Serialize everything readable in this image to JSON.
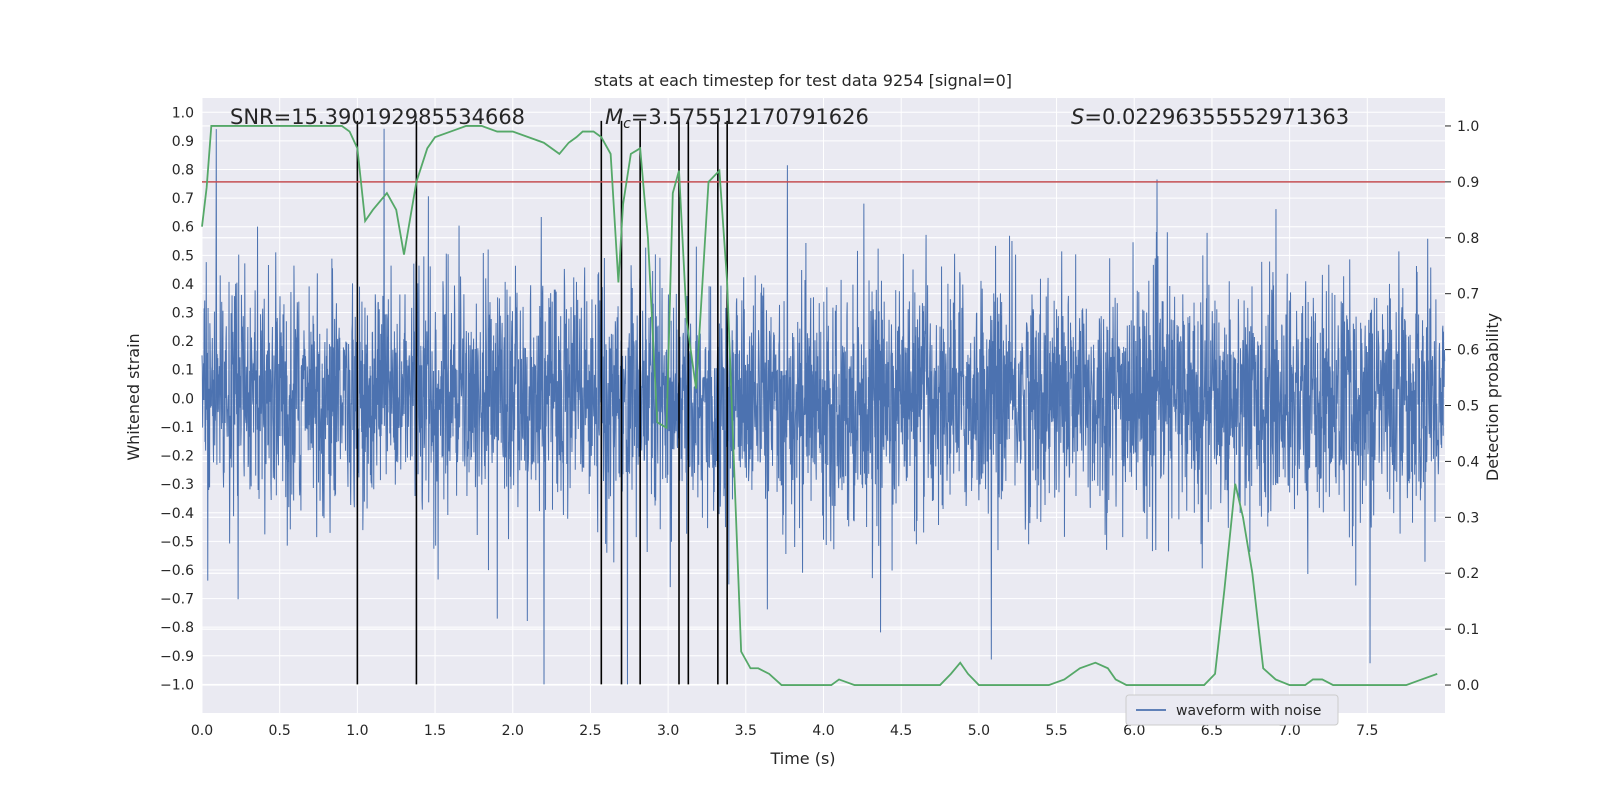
{
  "chart_data": {
    "type": "line",
    "title": "stats at each timestep for test data 9254 [signal=0]",
    "xlabel": "Time (s)",
    "ylabel": "Whitened strain",
    "y2label": "Detection probability",
    "xlim": [
      0.0,
      8.0
    ],
    "ylim": [
      -1.1,
      1.05
    ],
    "y2lim": [
      -0.05,
      1.05
    ],
    "x_ticks": [
      0.0,
      0.5,
      1.0,
      1.5,
      2.0,
      2.5,
      3.0,
      3.5,
      4.0,
      4.5,
      5.0,
      5.5,
      6.0,
      6.5,
      7.0,
      7.5
    ],
    "x_tick_labels": [
      "0.0",
      "0.5",
      "1.0",
      "1.5",
      "2.0",
      "2.5",
      "3.0",
      "3.5",
      "4.0",
      "4.5",
      "5.0",
      "5.5",
      "6.0",
      "6.5",
      "7.0",
      "7.5"
    ],
    "y_ticks": [
      -1.0,
      -0.9,
      -0.8,
      -0.7,
      -0.6,
      -0.5,
      -0.4,
      -0.3,
      -0.2,
      -0.1,
      0.0,
      0.1,
      0.2,
      0.3,
      0.4,
      0.5,
      0.6,
      0.7,
      0.8,
      0.9,
      1.0
    ],
    "y_tick_labels": [
      "−1.0",
      "−0.9",
      "−0.8",
      "−0.7",
      "−0.6",
      "−0.5",
      "−0.4",
      "−0.3",
      "−0.2",
      "−0.1",
      "0.0",
      "0.1",
      "0.2",
      "0.3",
      "0.4",
      "0.5",
      "0.6",
      "0.7",
      "0.8",
      "0.9",
      "1.0"
    ],
    "y2_ticks": [
      0.0,
      0.1,
      0.2,
      0.3,
      0.4,
      0.5,
      0.6,
      0.7,
      0.8,
      0.9,
      1.0
    ],
    "y2_tick_labels": [
      "0.0",
      "0.1",
      "0.2",
      "0.3",
      "0.4",
      "0.5",
      "0.6",
      "0.7",
      "0.8",
      "0.9",
      "1.0"
    ],
    "grid": true,
    "legend": {
      "entries": [
        "waveform with noise"
      ],
      "placement": "lower-right"
    },
    "annotations": {
      "snr": "SNR=15.390192985534668",
      "mc_symbol": "M",
      "mc_sub": "c",
      "mc_value": "=3.575512170791626",
      "s_symbol": "S",
      "s_value": "=0.022963555529713​63"
    },
    "threshold": {
      "value": 0.9,
      "axis": "right",
      "color": "#c44e52"
    },
    "event_lines_x": [
      1.0,
      1.38,
      2.57,
      2.7,
      2.82,
      3.07,
      3.13,
      3.32,
      3.38
    ],
    "waveform": {
      "name": "waveform with noise",
      "color": "#4c72b0",
      "n_samples": 4096,
      "typical_amplitude": 0.35,
      "peak_amplitude": 1.0
    },
    "probability": {
      "color": "#55a868",
      "x": [
        0.0,
        0.03,
        0.06,
        0.15,
        0.3,
        0.5,
        0.7,
        0.9,
        0.95,
        1.0,
        1.05,
        1.1,
        1.19,
        1.25,
        1.3,
        1.38,
        1.45,
        1.5,
        1.6,
        1.7,
        1.8,
        1.9,
        2.0,
        2.1,
        2.2,
        2.3,
        2.36,
        2.41,
        2.45,
        2.52,
        2.57,
        2.63,
        2.68,
        2.71,
        2.76,
        2.82,
        2.87,
        2.93,
        2.99,
        3.03,
        3.07,
        3.12,
        3.18,
        3.26,
        3.33,
        3.38,
        3.43,
        3.47,
        3.53,
        3.58,
        3.65,
        3.73,
        3.83,
        3.95,
        4.05,
        4.1,
        4.2,
        4.25,
        4.4,
        4.55,
        4.65,
        4.75,
        4.82,
        4.88,
        4.93,
        5.0,
        5.08,
        5.15,
        5.25,
        5.35,
        5.45,
        5.55,
        5.65,
        5.75,
        5.83,
        5.88,
        5.95,
        6.05,
        6.2,
        6.35,
        6.45,
        6.52,
        6.58,
        6.65,
        6.7,
        6.76,
        6.83,
        6.91,
        7.0,
        7.1,
        7.15,
        7.21,
        7.28,
        7.35,
        7.45,
        7.55,
        7.65,
        7.75,
        7.85,
        7.95
      ],
      "y": [
        0.82,
        0.89,
        1.0,
        1.0,
        1.0,
        1.0,
        1.0,
        1.0,
        0.99,
        0.96,
        0.83,
        0.85,
        0.88,
        0.85,
        0.77,
        0.9,
        0.96,
        0.98,
        0.99,
        1.0,
        1.0,
        0.99,
        0.99,
        0.98,
        0.97,
        0.95,
        0.97,
        0.98,
        0.99,
        0.99,
        0.98,
        0.95,
        0.72,
        0.86,
        0.95,
        0.96,
        0.8,
        0.47,
        0.46,
        0.88,
        0.92,
        0.65,
        0.53,
        0.9,
        0.92,
        0.72,
        0.35,
        0.06,
        0.03,
        0.03,
        0.02,
        0.0,
        0.0,
        0.0,
        0.0,
        0.01,
        0.0,
        0.0,
        0.0,
        0.0,
        0.0,
        0.0,
        0.02,
        0.04,
        0.02,
        0.0,
        0.0,
        0.0,
        0.0,
        0.0,
        0.0,
        0.01,
        0.03,
        0.04,
        0.03,
        0.01,
        0.0,
        0.0,
        0.0,
        0.0,
        0.0,
        0.02,
        0.17,
        0.36,
        0.3,
        0.2,
        0.03,
        0.01,
        0.0,
        0.0,
        0.01,
        0.01,
        0.0,
        0.0,
        0.0,
        0.0,
        0.0,
        0.0,
        0.01,
        0.02
      ]
    }
  }
}
